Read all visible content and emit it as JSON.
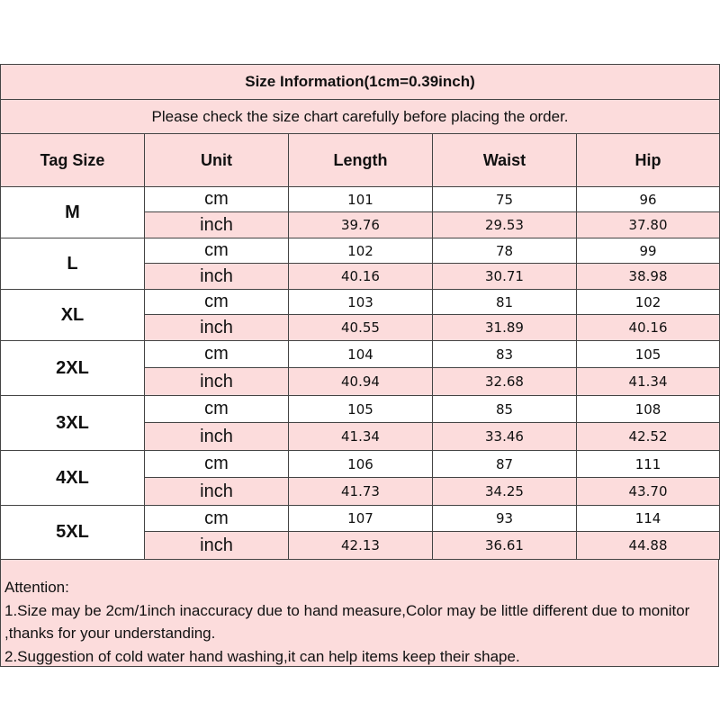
{
  "title": "Size Information(1cm=0.39inch)",
  "subtitle": "Please check the size chart carefully before placing the order.",
  "headers": [
    "Tag Size",
    "Unit",
    "Length",
    "Waist",
    "Hip"
  ],
  "colors": {
    "pink": "#fcdcdc",
    "border": "#444444"
  },
  "rows": [
    {
      "size": "M",
      "cm": {
        "unit": "cm",
        "length": "101",
        "waist": "75",
        "hip": "96"
      },
      "inch": {
        "unit": "inch",
        "length": "39.76",
        "waist": "29.53",
        "hip": "37.80"
      }
    },
    {
      "size": "L",
      "cm": {
        "unit": "cm",
        "length": "102",
        "waist": "78",
        "hip": "99"
      },
      "inch": {
        "unit": "inch",
        "length": "40.16",
        "waist": "30.71",
        "hip": "38.98"
      }
    },
    {
      "size": "XL",
      "cm": {
        "unit": "cm",
        "length": "103",
        "waist": "81",
        "hip": "102"
      },
      "inch": {
        "unit": "inch",
        "length": "40.55",
        "waist": "31.89",
        "hip": "40.16"
      }
    },
    {
      "size": "2XL",
      "cm": {
        "unit": "cm",
        "length": "104",
        "waist": "83",
        "hip": "105"
      },
      "inch": {
        "unit": "inch",
        "length": "40.94",
        "waist": "32.68",
        "hip": "41.34"
      }
    },
    {
      "size": "3XL",
      "cm": {
        "unit": "cm",
        "length": "105",
        "waist": "85",
        "hip": "108"
      },
      "inch": {
        "unit": "inch",
        "length": "41.34",
        "waist": "33.46",
        "hip": "42.52"
      }
    },
    {
      "size": "4XL",
      "cm": {
        "unit": "cm",
        "length": "106",
        "waist": "87",
        "hip": "111"
      },
      "inch": {
        "unit": "inch",
        "length": "41.73",
        "waist": "34.25",
        "hip": "43.70"
      }
    },
    {
      "size": "5XL",
      "cm": {
        "unit": "cm",
        "length": "107",
        "waist": "93",
        "hip": "114"
      },
      "inch": {
        "unit": "inch",
        "length": "42.13",
        "waist": "36.61",
        "hip": "44.88"
      }
    }
  ],
  "attention": {
    "heading": "Attention:",
    "lines": [
      "1.Size may be 2cm/1inch inaccuracy due to hand measure,Color may be little different due to monitor ,thanks for your understanding.",
      "2.Suggestion of cold water hand washing,it can help items keep their shape."
    ]
  }
}
